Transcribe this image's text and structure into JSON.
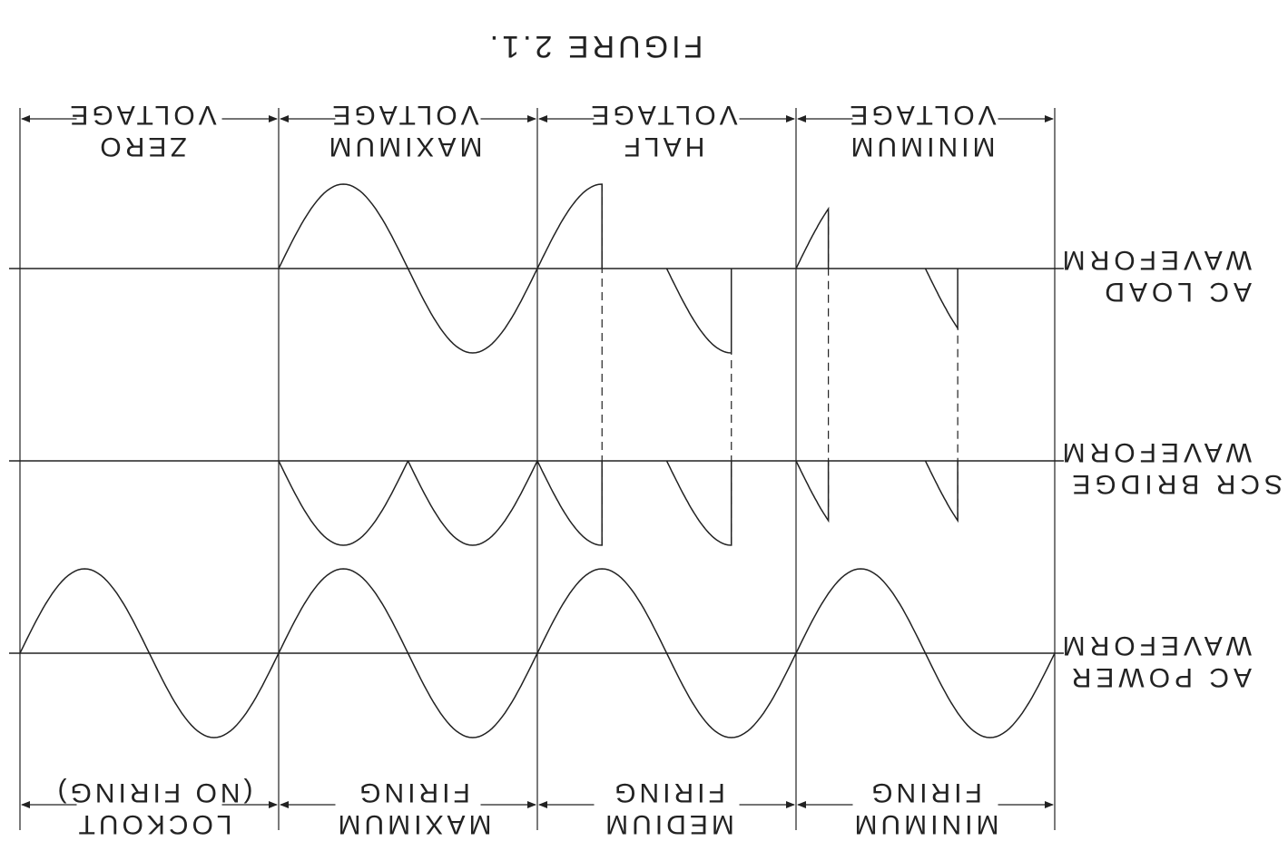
{
  "figure_title": "FIGURE 2.1.",
  "theme": {
    "ink": "#222222",
    "background": "#ffffff",
    "orientation": "rotated-180"
  },
  "rows": [
    {
      "id": "ac-load",
      "label_line1": "AC LOAD",
      "label_line2": "WAVEFORM"
    },
    {
      "id": "scr-bridge",
      "label_line1": "SCR BRIDGE",
      "label_line2": "WAVEFORM"
    },
    {
      "id": "ac-power",
      "label_line1": "AC POWER",
      "label_line2": "WAVEFORM"
    }
  ],
  "segments": [
    {
      "id": "minimum",
      "voltage_line1": "MINIMUM",
      "voltage_line2": "VOLTAGE",
      "firing_line1": "MINIMUM",
      "firing_line2": "FIRING",
      "firing_angle_fraction_of_half_cycle": 0.75
    },
    {
      "id": "medium",
      "voltage_line1": "HALF",
      "voltage_line2": "VOLTAGE",
      "firing_line1": "MEDIUM",
      "firing_line2": "FIRING",
      "firing_angle_fraction_of_half_cycle": 0.5
    },
    {
      "id": "maximum",
      "voltage_line1": "MAXIMUM",
      "voltage_line2": "VOLTAGE",
      "firing_line1": "MAXIMUM",
      "firing_line2": "FIRING",
      "firing_angle_fraction_of_half_cycle": 0.0
    },
    {
      "id": "lockout",
      "voltage_line1": "ZERO",
      "voltage_line2": "VOLTAGE",
      "firing_line1": "LOCKOUT",
      "firing_line2": "(NO FIRING)",
      "firing_angle_fraction_of_half_cycle": 1.0
    }
  ]
}
